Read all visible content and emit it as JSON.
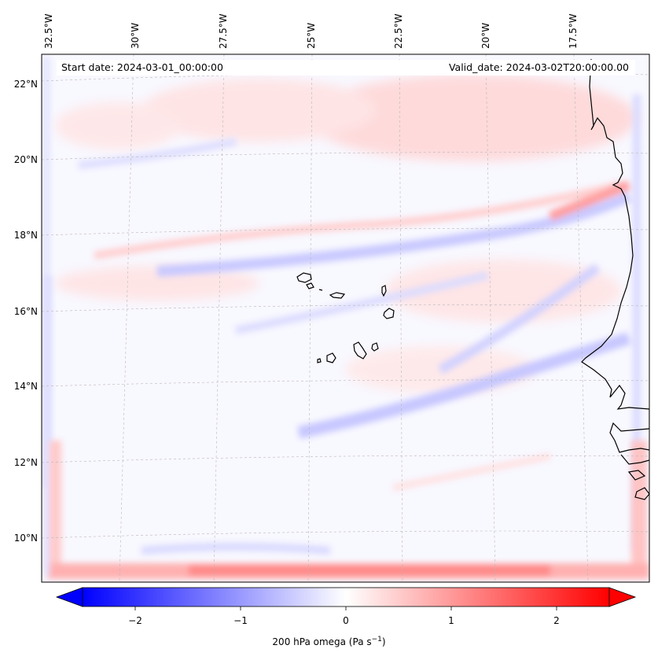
{
  "header": {
    "start_date": "Start date: 2024-03-01_00:00:00",
    "valid_date": "Valid_date: 2024-03-02T20:00:00.00"
  },
  "axes": {
    "lon_labels": [
      "32.5°W",
      "30°W",
      "27.5°W",
      "25°W",
      "22.5°W",
      "20°W",
      "17.5°W"
    ],
    "lat_labels": [
      "22°N",
      "20°N",
      "18°N",
      "16°N",
      "14°N",
      "12°N",
      "10°N"
    ]
  },
  "colorbar": {
    "title": "200 hPa omega (Pa s",
    "title_sup": "−1",
    "title_end": ")",
    "ticks": [
      "−2",
      "−1",
      "0",
      "1",
      "2"
    ],
    "range": [
      -2.75,
      2.75
    ],
    "cmap": "bwr",
    "color_negative": "#0000ff",
    "color_zero": "#ffffff",
    "color_positive": "#ff0000"
  },
  "map": {
    "variable": "200 hPa omega",
    "features": [
      "coastline-west-africa",
      "cape-verde-islands"
    ]
  }
}
